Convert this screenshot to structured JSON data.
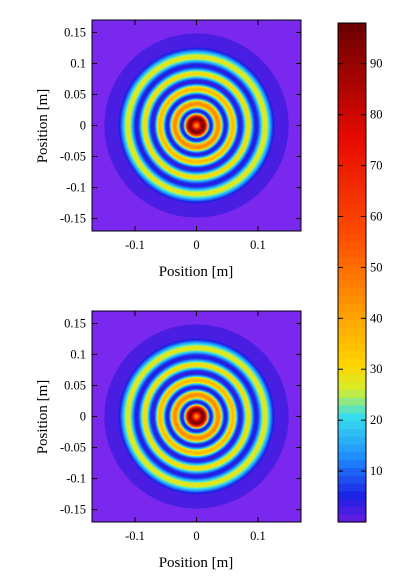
{
  "chart_data": [
    {
      "type": "heatmap",
      "title": "",
      "xlabel": "Position [m]",
      "ylabel": "Position [m]",
      "xlim": [
        -0.17,
        0.17
      ],
      "ylim": [
        -0.17,
        0.17
      ],
      "xticks": [
        -0.1,
        0,
        0.1
      ],
      "xtick_labels": [
        "-0.1",
        "0",
        "0.1"
      ],
      "yticks": [
        0.15,
        0.1,
        0.05,
        0,
        -0.05,
        -0.1,
        -0.15
      ],
      "ytick_labels": [
        "0.15",
        "0.1",
        "0.05",
        "0",
        "-0.05",
        "-0.1",
        "-0.15"
      ],
      "pattern": "concentric rings centred at (0, 0), peak near the centre about 95, ring structure out to radius about 0.13 m, background about 2",
      "ring_peaks": [
        {
          "radius": 0.0,
          "value": 40
        },
        {
          "radius": 0.012,
          "value": 95
        },
        {
          "radius": 0.036,
          "value": 45
        },
        {
          "radius": 0.06,
          "value": 36
        },
        {
          "radius": 0.085,
          "value": 30
        },
        {
          "radius": 0.112,
          "value": 28
        }
      ],
      "ring_valleys": [
        {
          "radius": 0.024,
          "value": 4
        },
        {
          "radius": 0.048,
          "value": 4
        },
        {
          "radius": 0.072,
          "value": 3
        },
        {
          "radius": 0.098,
          "value": 4
        },
        {
          "radius": 0.13,
          "value": 2
        }
      ]
    },
    {
      "type": "heatmap",
      "title": "",
      "xlabel": "Position [m]",
      "ylabel": "Position [m]",
      "xlim": [
        -0.17,
        0.17
      ],
      "ylim": [
        -0.17,
        0.17
      ],
      "xticks": [
        -0.1,
        0,
        0.1
      ],
      "xtick_labels": [
        "-0.1",
        "0",
        "0.1"
      ],
      "yticks": [
        0.15,
        0.1,
        0.05,
        0,
        -0.05,
        -0.1,
        -0.15
      ],
      "ytick_labels": [
        "0.15",
        "0.1",
        "0.05",
        "0",
        "-0.05",
        "-0.1",
        "-0.15"
      ],
      "pattern": "concentric rings centred at (0, 0), peak near the centre about 95, ring structure out to radius about 0.13 m, background about 2",
      "ring_peaks": [
        {
          "radius": 0.0,
          "value": 40
        },
        {
          "radius": 0.012,
          "value": 95
        },
        {
          "radius": 0.036,
          "value": 45
        },
        {
          "radius": 0.06,
          "value": 36
        },
        {
          "radius": 0.085,
          "value": 30
        },
        {
          "radius": 0.112,
          "value": 28
        }
      ],
      "ring_valleys": [
        {
          "radius": 0.024,
          "value": 4
        },
        {
          "radius": 0.048,
          "value": 4
        },
        {
          "radius": 0.072,
          "value": 3
        },
        {
          "radius": 0.098,
          "value": 4
        },
        {
          "radius": 0.13,
          "value": 2
        }
      ]
    }
  ],
  "colorbar": {
    "min": 0,
    "max": 98,
    "ticks": [
      10,
      20,
      30,
      40,
      50,
      60,
      70,
      80,
      90
    ],
    "tick_labels": [
      "10",
      "20",
      "30",
      "40",
      "50",
      "60",
      "70",
      "80",
      "90"
    ],
    "colors": [
      "#6a1de0",
      "#1b1fe4",
      "#1f8fff",
      "#39e0ec",
      "#d4ee2c",
      "#ffd400",
      "#ff9a00",
      "#ff5200",
      "#e80a00",
      "#6a0000"
    ],
    "color_stops": [
      0,
      5,
      13,
      21,
      26,
      31,
      42,
      55,
      75,
      98
    ],
    "banded": true
  }
}
